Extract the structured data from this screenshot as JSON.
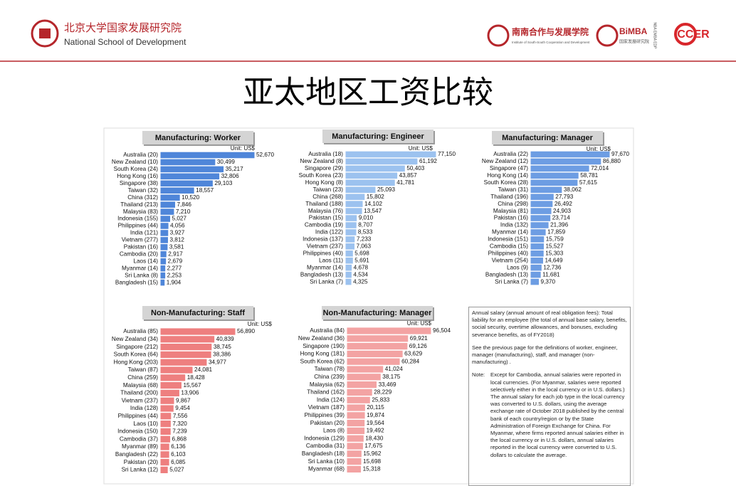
{
  "header": {
    "school_cn": "北京大学国家发展研究院",
    "school_en": "National School of Development",
    "institute_cn": "南南合作与发展学院",
    "institute_en": "Institute of South-South Cooperation and Development",
    "bimba": "BiMBA",
    "bimba_sub": "NBA EMBA EDP",
    "bimba_cn": "国家发展研究院",
    "ccer": "CCER"
  },
  "title": "亚太地区工资比较",
  "chart_data": [
    {
      "type": "bar",
      "title": "Manufacturing: Worker",
      "unit": "Unit: US$",
      "color": "#4f86d9",
      "categories": [
        "Australia (20)",
        "New Zealand (10)",
        "South Korea (24)",
        "Hong Kong (16)",
        "Singapore (38)",
        "Taiwan (32)",
        "China (312)",
        "Thailand (213)",
        "Malaysia (83)",
        "Indonesia (155)",
        "Philippines (44)",
        "India (121)",
        "Vietnam (277)",
        "Pakistan (16)",
        "Cambodia (20)",
        "Laos (14)",
        "Myanmar (14)",
        "Sri Lanka (8)",
        "Bangladesh (15)"
      ],
      "values": [
        52670,
        30499,
        35217,
        32806,
        29103,
        18557,
        10520,
        7846,
        7210,
        5027,
        4056,
        3927,
        3812,
        3581,
        2917,
        2679,
        2277,
        2253,
        1904
      ],
      "value_labels": [
        "52,670",
        "30,499",
        "35,217",
        "32,806",
        "29,103",
        "18,557",
        "10,520",
        "7,846",
        "7,210",
        "5,027",
        "4,056",
        "3,927",
        "3,812",
        "3,581",
        "2,917",
        "2,679",
        "2,277",
        "2,253",
        "1,904"
      ]
    },
    {
      "type": "bar",
      "title": "Manufacturing: Engineer",
      "unit": "Unit: US$",
      "color": "#9cc2ef",
      "categories": [
        "Australia (18)",
        "New Zealand (8)",
        "Singapore (29)",
        "South Korea (23)",
        "Hong Kong (8)",
        "Taiwan (23)",
        "China (268)",
        "Thailand (188)",
        "Malaysia (76)",
        "Pakistan (15)",
        "Cambodia (19)",
        "India (122)",
        "Indonesia (137)",
        "Vietnam (237)",
        "Philippines (40)",
        "Laos (11)",
        "Myanmar (14)",
        "Bangladesh (13)",
        "Sri Lanka (7)"
      ],
      "values": [
        77150,
        61192,
        50403,
        43857,
        41781,
        25093,
        15802,
        14102,
        13547,
        9010,
        8707,
        8533,
        7233,
        7063,
        5698,
        5691,
        4678,
        4534,
        4325
      ],
      "value_labels": [
        "77,150",
        "61,192",
        "50,403",
        "43,857",
        "41,781",
        "25,093",
        "15,802",
        "14,102",
        "13,547",
        "9,010",
        "8,707",
        "8,533",
        "7,233",
        "7,063",
        "5,698",
        "5,691",
        "4,678",
        "4,534",
        "4,325"
      ]
    },
    {
      "type": "bar",
      "title": "Manufacturing: Manager",
      "unit": "Unit: US$",
      "color": "#6d9de3",
      "categories": [
        "Australia (22)",
        "New Zealand (12)",
        "Singapore (47)",
        "Hong Kong (14)",
        "South Korea (28)",
        "Taiwan (31)",
        "Thailand (196)",
        "China (298)",
        "Malaysia (81)",
        "Pakistan (16)",
        "India (132)",
        "Myanmar (14)",
        "Indonesia (151)",
        "Cambodia (15)",
        "Philippines (40)",
        "Vietnam (254)",
        "Laos (9)",
        "Bangladesh (13)",
        "Sri Lanka (7)"
      ],
      "values": [
        97670,
        86880,
        72014,
        58781,
        57615,
        38062,
        27793,
        26492,
        24903,
        23714,
        21396,
        17859,
        15759,
        15527,
        15303,
        14649,
        12736,
        11681,
        9370
      ],
      "value_labels": [
        "97,670",
        "86,880",
        "72,014",
        "58,781",
        "57,615",
        "38,062",
        "27,793",
        "26,492",
        "24,903",
        "23,714",
        "21,396",
        "17,859",
        "15,759",
        "15,527",
        "15,303",
        "14,649",
        "12,736",
        "11,681",
        "9,370"
      ]
    },
    {
      "type": "bar",
      "title": "Non-Manufacturing: Staff",
      "unit": "Unit: US$",
      "color": "#ee7f7f",
      "categories": [
        "Australia (85)",
        "New Zealand (34)",
        "Singapore (212)",
        "South Korea (64)",
        "Hong Kong (203)",
        "Taiwan (87)",
        "China (259)",
        "Malaysia (68)",
        "Thailand (200)",
        "Vietnam (237)",
        "India (128)",
        "Philippines (44)",
        "Laos (10)",
        "Indonesia (150)",
        "Cambodia (37)",
        "Myanmar (89)",
        "Bangladesh (22)",
        "Pakistan (20)",
        "Sri Lanka (12)"
      ],
      "values": [
        56890,
        40839,
        38745,
        38386,
        34977,
        24081,
        18428,
        15567,
        13906,
        9867,
        9454,
        7556,
        7320,
        7239,
        6868,
        6136,
        6103,
        6085,
        5027
      ],
      "value_labels": [
        "56,890",
        "40,839",
        "38,745",
        "38,386",
        "34,977",
        "24,081",
        "18,428",
        "15,567",
        "13,906",
        "9,867",
        "9,454",
        "7,556",
        "7,320",
        "7,239",
        "6,868",
        "6,136",
        "6,103",
        "6,085",
        "5,027"
      ]
    },
    {
      "type": "bar",
      "title": "Non-Manufacturing: Manager",
      "unit": "Unit: US$",
      "color": "#f3a3a3",
      "categories": [
        "Australia (84)",
        "New Zealand (36)",
        "Singapore (190)",
        "Hong Kong (181)",
        "South Korea (62)",
        "Taiwan (78)",
        "China (239)",
        "Malaysia (62)",
        "Thailand (162)",
        "India (124)",
        "Vietnam (187)",
        "Philippines (39)",
        "Pakistan (20)",
        "Laos (8)",
        "Indonesia (129)",
        "Cambodia (31)",
        "Bangladesh (18)",
        "Sri Lanka (10)",
        "Myanmar (68)"
      ],
      "values": [
        96504,
        69921,
        69126,
        63629,
        60284,
        41024,
        38175,
        33469,
        28229,
        25833,
        20115,
        19874,
        19564,
        19492,
        18430,
        17675,
        15962,
        15698,
        15318
      ],
      "value_labels": [
        "96,504",
        "69,921",
        "69,126",
        "63,629",
        "60,284",
        "41,024",
        "38,175",
        "33,469",
        "28,229",
        "25,833",
        "20,115",
        "19,874",
        "19,564",
        "19,492",
        "18,430",
        "17,675",
        "15,962",
        "15,698",
        "15,318"
      ]
    }
  ],
  "note": {
    "p1": "Annual salary (annual amount of real obligation fees): Total liability for an employee (the total of annual base salary, benefits, social security, overtime allowances, and bonuses, excluding severance benefits, as of FY2018)",
    "p2": "See the previous page for the definitions of worker, engineer, manager (manufacturing), staff, and manager (non-manufacturing) .",
    "label": "Note:",
    "p3": "Except for Cambodia, annual salaries were reported in local currencies. (For Myanmar, salaries were reported selectively either in the local currency or in U.S. dollars.) The annual salary for each job type in the local currency was converted to U.S. dollars, using the average exchange rate of October 2018 published by the central bank of each country/region or by the State Administration of Foreign Exchange for China. For Myanmar, where firms reported annual salaries either in the local currency or in U.S. dollars, annual salaries reported in the local currency were converted to U.S. dollars to calculate the average."
  }
}
